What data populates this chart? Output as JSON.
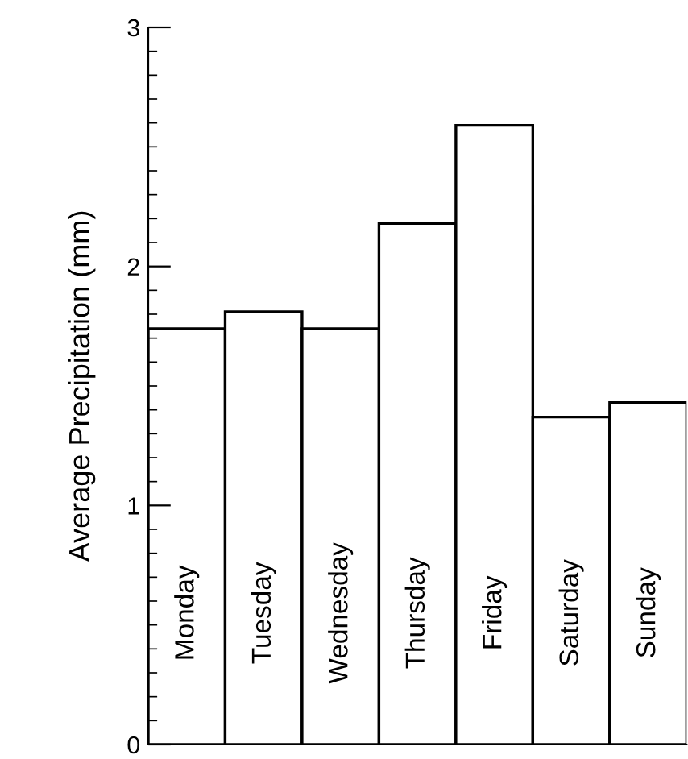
{
  "chart_data": {
    "type": "bar",
    "ylabel": "Average Precipitation (mm)",
    "categories": [
      "Monday",
      "Tuesday",
      "Wednesday",
      "Thursday",
      "Friday",
      "Saturday",
      "Sunday"
    ],
    "values": [
      1.74,
      1.81,
      1.74,
      2.18,
      2.59,
      1.37,
      1.43
    ],
    "color": "#ffffff",
    "ylim": [
      0,
      3
    ],
    "yticks": [
      0,
      1,
      2,
      3
    ],
    "grid": false
  }
}
